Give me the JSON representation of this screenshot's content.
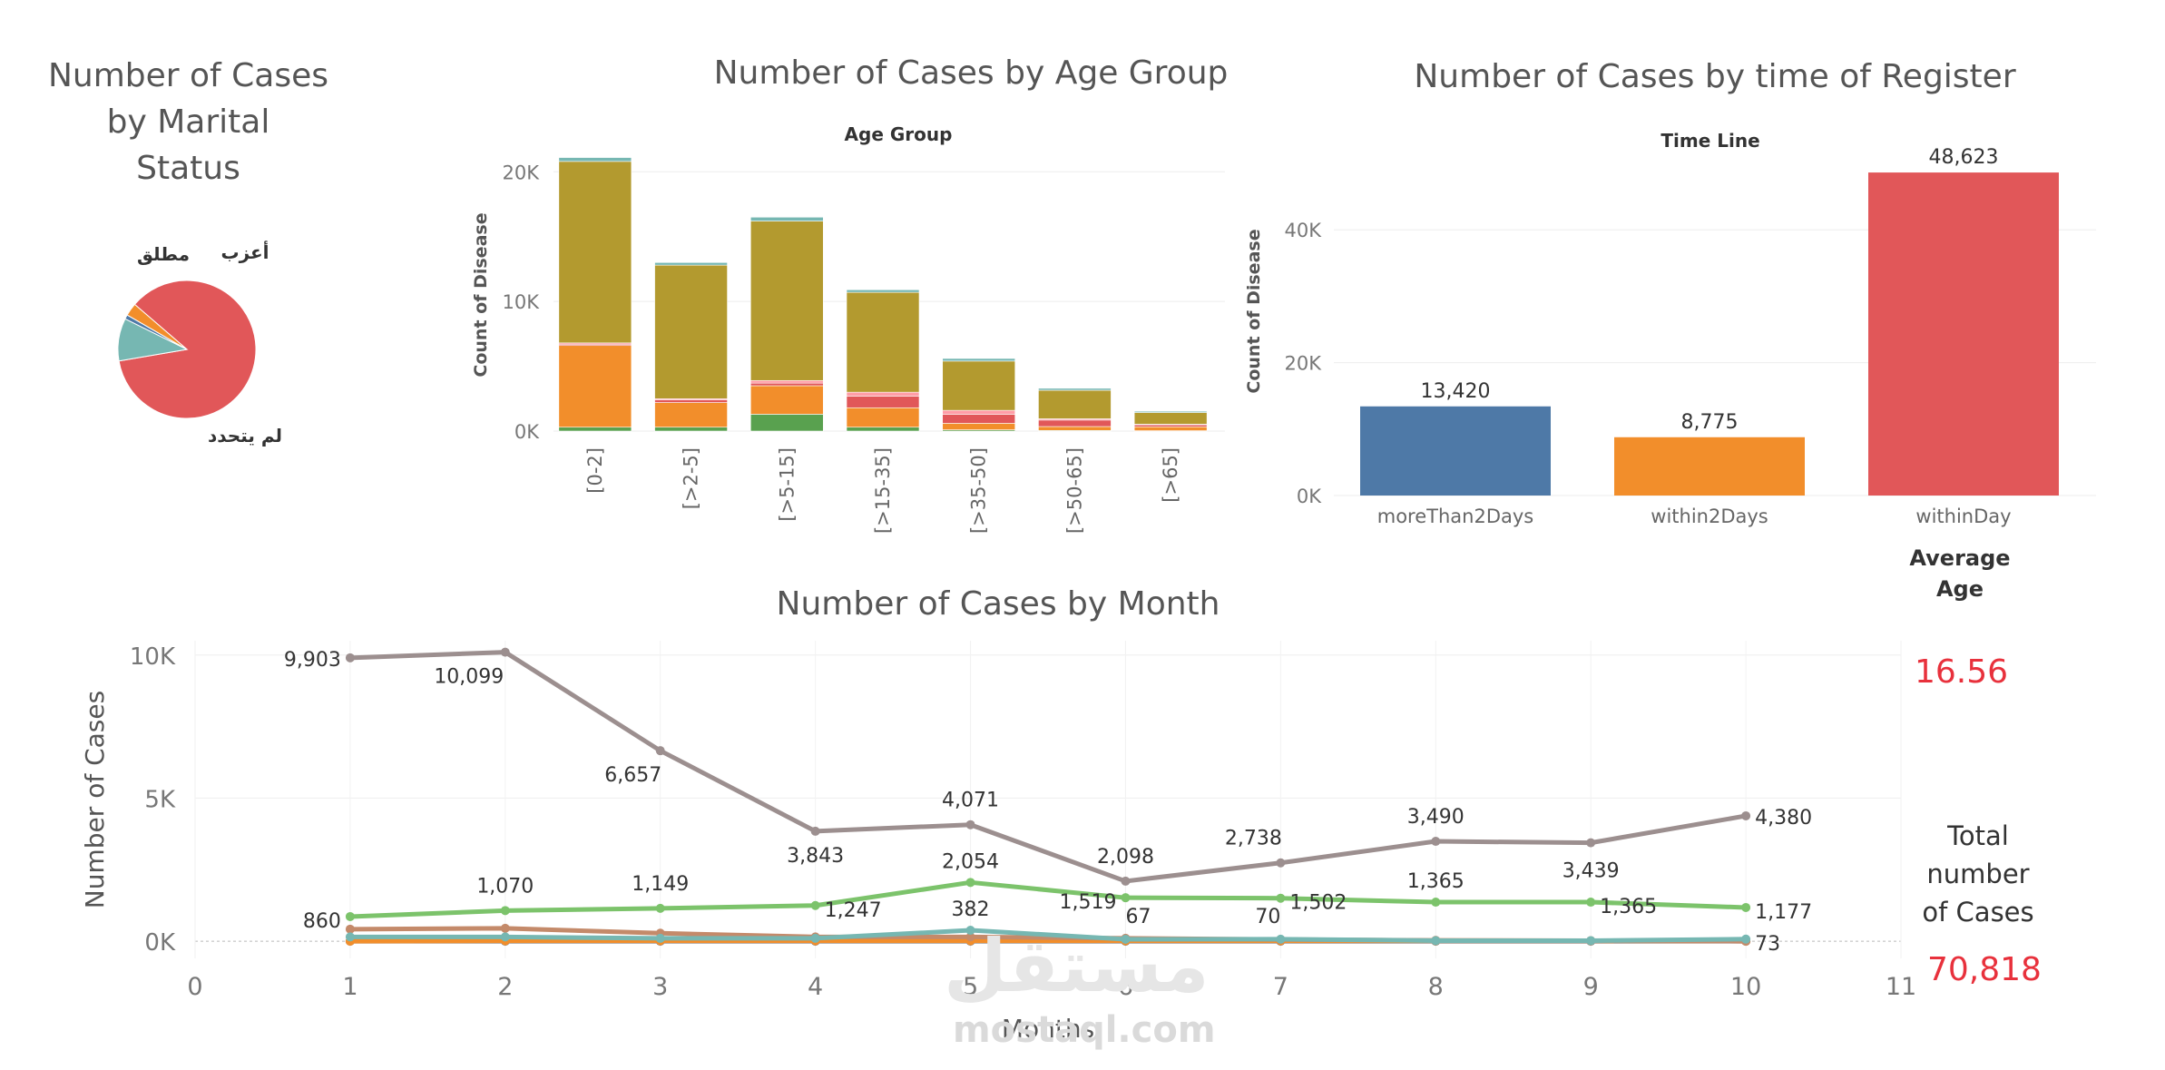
{
  "colors": {
    "olive": "#b39a2f",
    "orange": "#f28e2b",
    "green": "#59a14f",
    "red": "#e15759",
    "teal": "#76b7b2",
    "blue": "#4e79a7",
    "pink": "#ff9da7",
    "gray": "#9c8f8f",
    "lightgreen": "#7cc36b",
    "kpi": "#e8313c"
  },
  "chart_data": [
    {
      "id": "marital",
      "type": "pie",
      "title": "Number of Cases by Marital Status",
      "title_lines": [
        "Number of Cases",
        "by Marital",
        "Status"
      ],
      "slices": [
        {
          "label": "لم يتحدد",
          "value": 86,
          "color": "#e15759"
        },
        {
          "label": "مطلق",
          "value": 10,
          "color": "#76b7b2"
        },
        {
          "label": "",
          "value": 1,
          "color": "#4e79a7"
        },
        {
          "label": "أعزب",
          "value": 3,
          "color": "#f28e2b"
        }
      ]
    },
    {
      "id": "age",
      "type": "bar",
      "stacked": true,
      "title": "Number of Cases by Age Group",
      "header": "Age Group",
      "ylabel": "Count of Disease",
      "ylim": [
        0,
        21000
      ],
      "yticks": [
        {
          "v": 0,
          "label": "0K"
        },
        {
          "v": 10000,
          "label": "10K"
        },
        {
          "v": 20000,
          "label": "20K"
        }
      ],
      "categories": [
        "[0-2]",
        "[>2-5]",
        "[>5-15]",
        "[>15-35]",
        "[>35-50]",
        "[>50-65]",
        "[>65]"
      ],
      "series": [
        {
          "name": "green",
          "color": "#59a14f",
          "values": [
            300,
            300,
            1300,
            300,
            100,
            50,
            30
          ]
        },
        {
          "name": "orange",
          "color": "#f28e2b",
          "values": [
            6300,
            1900,
            2200,
            1500,
            500,
            300,
            300
          ]
        },
        {
          "name": "red",
          "color": "#e15759",
          "values": [
            100,
            200,
            200,
            900,
            700,
            500,
            150
          ]
        },
        {
          "name": "pink",
          "color": "#ff9da7",
          "values": [
            100,
            100,
            200,
            300,
            300,
            100,
            50
          ]
        },
        {
          "name": "olive",
          "color": "#b39a2f",
          "values": [
            14000,
            10300,
            12300,
            7700,
            3800,
            2200,
            900
          ]
        },
        {
          "name": "teal",
          "color": "#76b7b2",
          "values": [
            300,
            200,
            300,
            200,
            200,
            150,
            100
          ]
        }
      ]
    },
    {
      "id": "register",
      "type": "bar",
      "title": "Number of Cases by time of Register",
      "header": "Time Line",
      "ylabel": "Count of Disease",
      "ylim": [
        0,
        50000
      ],
      "yticks": [
        {
          "v": 0,
          "label": "0K"
        },
        {
          "v": 20000,
          "label": "20K"
        },
        {
          "v": 40000,
          "label": "40K"
        }
      ],
      "categories": [
        "moreThan2Days",
        "within2Days",
        "withinDay"
      ],
      "values": [
        13420,
        8775,
        48623
      ],
      "value_labels": [
        "13,420",
        "8,775",
        "48,623"
      ],
      "colors": [
        "#4e79a7",
        "#f28e2b",
        "#e15759"
      ]
    },
    {
      "id": "month",
      "type": "line",
      "title": "Number of Cases by Month",
      "xlabel": "Months",
      "ylabel": "Number of Cases",
      "xlim": [
        0,
        11
      ],
      "ylim": [
        -600,
        10500
      ],
      "xticks": [
        0,
        1,
        2,
        3,
        4,
        5,
        6,
        7,
        8,
        9,
        10,
        11
      ],
      "yticks": [
        {
          "v": 0,
          "label": "0K"
        },
        {
          "v": 5000,
          "label": "5K"
        },
        {
          "v": 10000,
          "label": "10K"
        }
      ],
      "series": [
        {
          "name": "gray",
          "color": "#9c8f8f",
          "x": [
            1,
            2,
            3,
            4,
            5,
            6,
            7,
            8,
            9,
            10
          ],
          "values": [
            9903,
            10099,
            6657,
            3843,
            4071,
            2098,
            2738,
            3490,
            3439,
            4380
          ],
          "labels": [
            "9,903",
            "10,099",
            "6,657",
            "3,843",
            "4,071",
            "2,098",
            "2,738",
            "3,490",
            "3,439",
            "4,380"
          ]
        },
        {
          "name": "green",
          "color": "#7cc36b",
          "x": [
            1,
            2,
            3,
            4,
            5,
            6,
            7,
            8,
            9,
            10
          ],
          "values": [
            860,
            1070,
            1149,
            1247,
            2054,
            1519,
            1502,
            1365,
            1365,
            1177
          ],
          "labels": [
            "860",
            "1,070",
            "1,149",
            "1,247",
            "2,054",
            "1,519",
            "1,502",
            "1,365",
            "1,365",
            "1,177"
          ]
        },
        {
          "name": "teal",
          "color": "#76b7b2",
          "x": [
            1,
            2,
            3,
            4,
            5,
            6,
            7,
            8,
            9,
            10
          ],
          "values": [
            150,
            150,
            100,
            100,
            382,
            67,
            70,
            20,
            20,
            73
          ],
          "labels": [
            "",
            "",
            "",
            "",
            "382",
            "67",
            "70",
            "",
            "",
            "73"
          ]
        },
        {
          "name": "brown",
          "color": "#c48a6a",
          "x": [
            1,
            2,
            3,
            4,
            5,
            6,
            7,
            8,
            9,
            10
          ],
          "values": [
            420,
            450,
            280,
            150,
            150,
            100,
            60,
            30,
            20,
            0
          ],
          "labels": []
        },
        {
          "name": "orange",
          "color": "#f28e2b",
          "x": [
            1,
            2,
            3,
            4,
            5,
            6,
            7,
            8,
            9,
            10
          ],
          "values": [
            0,
            10,
            10,
            10,
            10,
            10,
            10,
            10,
            10,
            0
          ],
          "labels": []
        },
        {
          "name": "blue",
          "color": "#4e79a7",
          "x": [
            1,
            2,
            3,
            4,
            5,
            6,
            7,
            8,
            9,
            10
          ],
          "values": [
            0,
            0,
            0,
            0,
            0,
            0,
            0,
            0,
            0,
            0
          ],
          "labels": []
        }
      ]
    }
  ],
  "kpis": {
    "average_age_label": "Average Age",
    "average_age_value": "16.56",
    "total_label": "Total number of Cases",
    "total_value": "70,818"
  },
  "watermark": {
    "logo": "مستقل",
    "url": "mostaql.com"
  }
}
